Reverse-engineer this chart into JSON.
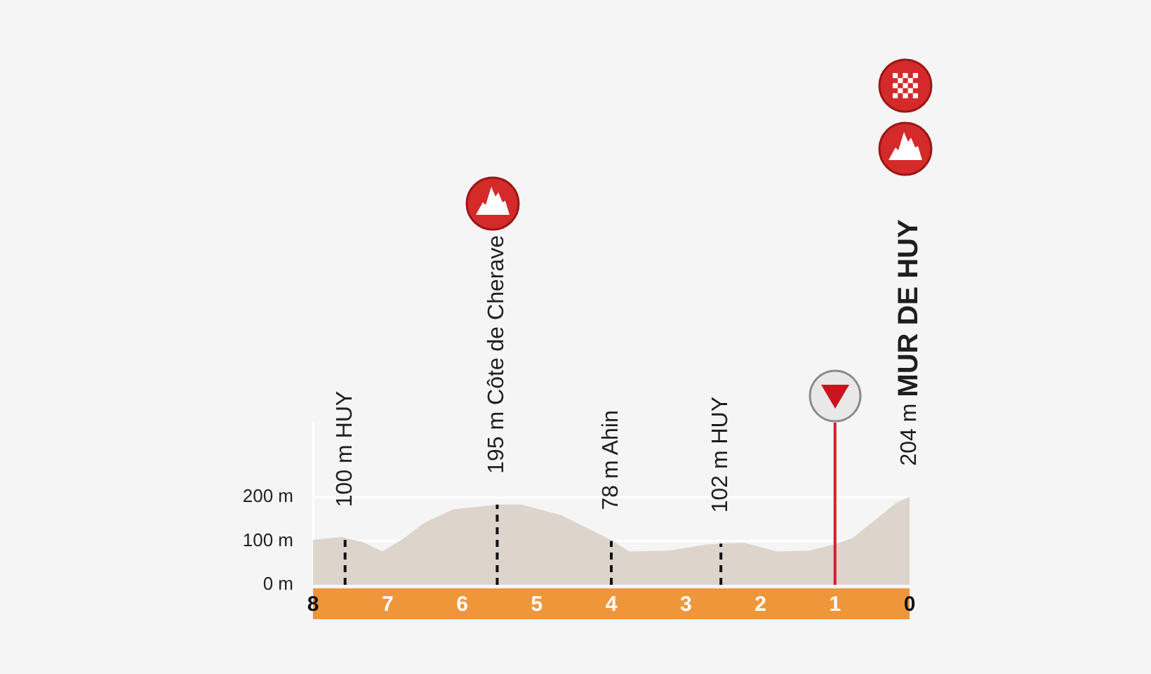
{
  "chart_data": {
    "type": "area",
    "marker": "none",
    "series": [
      {
        "color": "#ddd4cc",
        "x": [
          8,
          7.62,
          7.34,
          7.07,
          6.81,
          6.5,
          6.12,
          5.53,
          5.2,
          4.67,
          4.01,
          3.76,
          3.22,
          2.72,
          2.53,
          2.22,
          1.78,
          1.34,
          1.02,
          0.77,
          0.46,
          0.18,
          0
        ],
        "values": [
          103,
          109,
          98,
          76,
          103,
          142,
          172,
          183,
          183,
          159,
          103,
          76,
          78,
          92,
          94,
          96,
          76,
          78,
          92,
          106,
          148,
          187,
          201
        ]
      },
      {
        "type": "line",
        "color": "#111111",
        "line_style": "dashed",
        "x": [
          7.57,
          7.57
        ],
        "values": [
          0,
          107
        ]
      },
      {
        "type": "line",
        "color": "#111111",
        "line_style": "dashed",
        "x": [
          5.53,
          5.53
        ],
        "values": [
          0,
          183
        ]
      },
      {
        "type": "line",
        "color": "#111111",
        "line_style": "dashed",
        "x": [
          4.0,
          4.0
        ],
        "values": [
          0,
          100
        ]
      },
      {
        "type": "line",
        "color": "#111111",
        "line_style": "dashed",
        "x": [
          2.53,
          2.53
        ],
        "values": [
          0,
          94
        ]
      }
    ],
    "xlim": [
      8,
      0
    ],
    "xticks": [
      8,
      7,
      6,
      5,
      4,
      3,
      2,
      1,
      0
    ],
    "ylim": [
      0,
      370
    ],
    "yticks": [
      {
        "value": 0,
        "label": "0 m"
      },
      {
        "value": 100,
        "label": "100 m"
      },
      {
        "value": 200,
        "label": "200 m"
      }
    ],
    "grid": "y",
    "ref_lines": [
      {
        "axis": "x",
        "value": 1,
        "color": "#d3202a"
      }
    ],
    "annotations": [
      {
        "text": "100 m HUY",
        "x": 7.57,
        "y": 107
      },
      {
        "text": "195 m Côte de Cherave",
        "x": 5.53,
        "y": 183
      },
      {
        "text": "78 m Ahin",
        "x": 4.0,
        "y": 100
      },
      {
        "text": "102 m HUY",
        "x": 2.53,
        "y": 94
      },
      {
        "text": "204 m MUR DE HUY",
        "x": 0,
        "y": 201
      }
    ]
  }
}
